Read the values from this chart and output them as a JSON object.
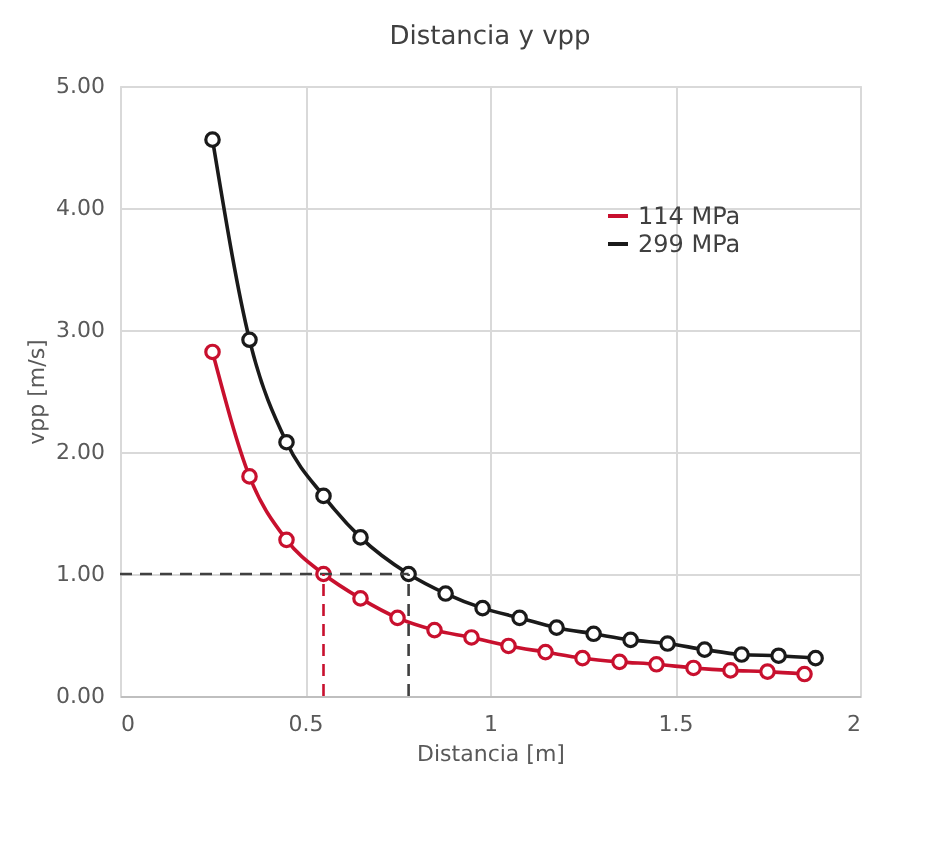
{
  "chart_data": {
    "type": "line",
    "title": "Distancia  y vpp",
    "xlabel": "Distancia [m]",
    "ylabel": "vpp [m/s]",
    "xlim": [
      0,
      2
    ],
    "xticks": [
      0,
      0.5,
      1,
      1.5,
      2
    ],
    "ylim": [
      0,
      5
    ],
    "yticks": [
      {
        "value": 0,
        "label": "0.00"
      },
      {
        "value": 1,
        "label": "1.00"
      },
      {
        "value": 2,
        "label": "2.00"
      },
      {
        "value": 3,
        "label": "3.00"
      },
      {
        "value": 4,
        "label": "4.00"
      },
      {
        "value": 5,
        "label": "5.00"
      }
    ],
    "series": [
      {
        "name": "114 MPa",
        "color": "#c8102e",
        "x": [
          0.25,
          0.35,
          0.45,
          0.55,
          0.65,
          0.75,
          0.85,
          0.95,
          1.05,
          1.15,
          1.25,
          1.35,
          1.45,
          1.55,
          1.65,
          1.75,
          1.85
        ],
        "values": [
          2.82,
          1.8,
          1.28,
          1.0,
          0.8,
          0.64,
          0.54,
          0.48,
          0.41,
          0.36,
          0.31,
          0.28,
          0.26,
          0.23,
          0.21,
          0.2,
          0.18
        ]
      },
      {
        "name": "299 MPa",
        "color": "#1a1a1a",
        "x": [
          0.25,
          0.35,
          0.45,
          0.55,
          0.65,
          0.78,
          0.88,
          0.98,
          1.08,
          1.18,
          1.28,
          1.38,
          1.48,
          1.58,
          1.68,
          1.78,
          1.88
        ],
        "values": [
          4.56,
          2.92,
          2.08,
          1.64,
          1.3,
          1.0,
          0.84,
          0.72,
          0.64,
          0.56,
          0.51,
          0.46,
          0.43,
          0.38,
          0.34,
          0.33,
          0.31
        ]
      }
    ],
    "ref_lines": [
      {
        "axis": "y",
        "value": 1.0,
        "color": "#404040",
        "line_style": "dashed"
      },
      {
        "axis": "x",
        "value": 0.78,
        "color": "#404040",
        "line_style": "dashed"
      },
      {
        "axis": "x",
        "value": 0.55,
        "color": "#c8102e",
        "line_style": "dashed"
      }
    ],
    "marker": "circle",
    "line_style": "solid",
    "grid": true,
    "legend": "top right"
  }
}
